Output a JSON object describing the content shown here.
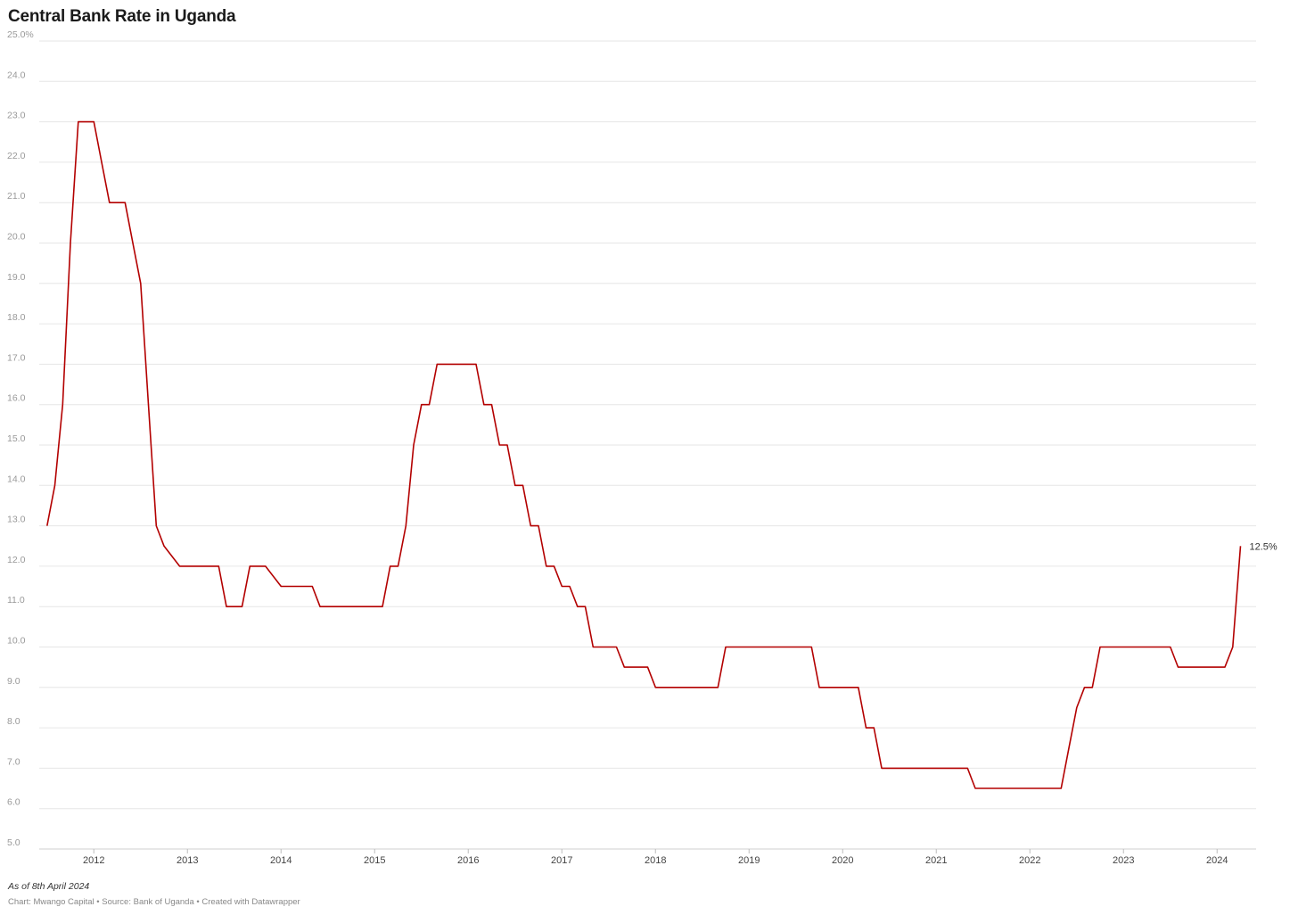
{
  "chart_data": {
    "type": "line",
    "title": "Central Bank Rate in Uganda",
    "xlabel": "",
    "ylabel": "",
    "ylim": [
      5.0,
      25.0
    ],
    "y_ticks": [
      "5.0",
      "6.0",
      "7.0",
      "8.0",
      "9.0",
      "10.0",
      "11.0",
      "12.0",
      "13.0",
      "14.0",
      "15.0",
      "16.0",
      "17.0",
      "18.0",
      "19.0",
      "20.0",
      "21.0",
      "22.0",
      "23.0",
      "24.0",
      "25.0%"
    ],
    "x_ticks": [
      "2012",
      "2013",
      "2014",
      "2015",
      "2016",
      "2017",
      "2018",
      "2019",
      "2020",
      "2021",
      "2022",
      "2023",
      "2024"
    ],
    "xlim": [
      "2011-06",
      "2024-06"
    ],
    "grid": true,
    "line_color": "#b30000",
    "end_label": "12.5%",
    "series": [
      {
        "x": [
          "2011-07",
          "2011-08",
          "2011-09",
          "2011-10",
          "2011-11",
          "2011-12",
          "2012-01",
          "2012-02",
          "2012-03",
          "2012-04",
          "2012-05",
          "2012-06",
          "2012-07",
          "2012-08",
          "2012-09",
          "2012-10",
          "2012-12",
          "2013-01",
          "2013-02",
          "2013-03",
          "2013-04",
          "2013-05",
          "2013-06",
          "2013-07",
          "2013-08",
          "2013-09",
          "2013-10",
          "2013-11",
          "2014-01",
          "2014-02",
          "2014-03",
          "2014-04",
          "2014-05",
          "2014-06",
          "2014-07",
          "2015-01",
          "2015-02",
          "2015-03",
          "2015-04",
          "2015-05",
          "2015-06",
          "2015-07",
          "2015-08",
          "2015-09",
          "2015-10",
          "2016-01",
          "2016-02",
          "2016-03",
          "2016-04",
          "2016-05",
          "2016-06",
          "2016-07",
          "2016-08",
          "2016-09",
          "2016-10",
          "2016-11",
          "2016-12",
          "2017-01",
          "2017-02",
          "2017-03",
          "2017-04",
          "2017-05",
          "2017-06",
          "2017-07",
          "2017-08",
          "2017-09",
          "2017-10",
          "2017-12",
          "2018-01",
          "2018-02",
          "2018-09",
          "2018-10",
          "2019-09",
          "2019-10",
          "2020-03",
          "2020-04",
          "2020-05",
          "2020-06",
          "2021-05",
          "2021-06",
          "2022-05",
          "2022-06",
          "2022-07",
          "2022-08",
          "2022-09",
          "2022-10",
          "2023-07",
          "2023-08",
          "2024-02",
          "2024-03",
          "2024-04"
        ],
        "values": [
          13.0,
          14.0,
          16.0,
          20.0,
          23.0,
          23.0,
          23.0,
          22.0,
          21.0,
          21.0,
          21.0,
          20.0,
          19.0,
          16.0,
          13.0,
          12.5,
          12.0,
          12.0,
          12.0,
          12.0,
          12.0,
          12.0,
          11.0,
          11.0,
          11.0,
          12.0,
          12.0,
          12.0,
          11.5,
          11.5,
          11.5,
          11.5,
          11.5,
          11.0,
          11.0,
          11.0,
          11.0,
          12.0,
          12.0,
          13.0,
          15.0,
          16.0,
          16.0,
          17.0,
          17.0,
          17.0,
          17.0,
          16.0,
          16.0,
          15.0,
          15.0,
          14.0,
          14.0,
          13.0,
          13.0,
          12.0,
          12.0,
          11.5,
          11.5,
          11.0,
          11.0,
          10.0,
          10.0,
          10.0,
          10.0,
          9.5,
          9.5,
          9.5,
          9.0,
          9.0,
          9.0,
          10.0,
          10.0,
          9.0,
          9.0,
          8.0,
          8.0,
          7.0,
          7.0,
          6.5,
          6.5,
          7.5,
          8.5,
          9.0,
          9.0,
          10.0,
          10.0,
          9.5,
          9.5,
          10.0,
          12.5
        ]
      }
    ]
  },
  "footer": {
    "note": "As of 8th April 2024",
    "source": "Chart: Mwango Capital • Source: Bank of Uganda • Created with Datawrapper"
  }
}
